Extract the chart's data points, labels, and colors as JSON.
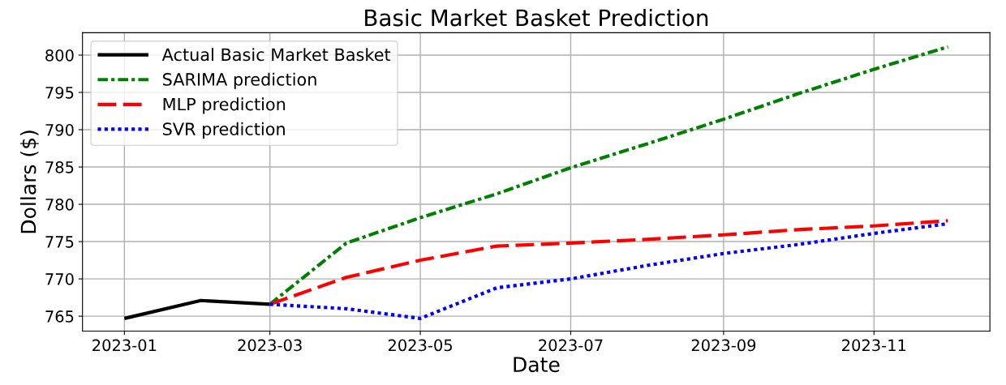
{
  "chart_data": {
    "type": "line",
    "title": "Basic Market Basket Prediction",
    "xlabel": "Date",
    "ylabel": "Dollars ($)",
    "xlim": [
      "2022-12-15",
      "2023-12-18"
    ],
    "xticks": [
      {
        "value": "2023-01-01",
        "label": "2023-01"
      },
      {
        "value": "2023-03-01",
        "label": "2023-03"
      },
      {
        "value": "2023-05-01",
        "label": "2023-05"
      },
      {
        "value": "2023-07-01",
        "label": "2023-07"
      },
      {
        "value": "2023-09-01",
        "label": "2023-09"
      },
      {
        "value": "2023-11-01",
        "label": "2023-11"
      }
    ],
    "ylim": [
      763,
      803
    ],
    "yticks": [
      765,
      770,
      775,
      780,
      785,
      790,
      795,
      800
    ],
    "grid": true,
    "legend": "top left",
    "series": [
      {
        "name": "Actual Basic Market Basket",
        "color": "#000000",
        "line_style": "solid",
        "x": [
          "2023-01-01",
          "2023-02-01",
          "2023-03-01"
        ],
        "values": [
          764.7,
          767.1,
          766.6
        ]
      },
      {
        "name": "SARIMA prediction",
        "color": "#008000",
        "line_style": "dashdot",
        "x": [
          "2023-03-01",
          "2023-04-01",
          "2023-05-01",
          "2023-06-01",
          "2023-07-01",
          "2023-08-01",
          "2023-09-01",
          "2023-10-01",
          "2023-11-01",
          "2023-12-01"
        ],
        "values": [
          766.6,
          774.8,
          778.2,
          781.4,
          784.9,
          788.1,
          791.4,
          794.8,
          798.1,
          801.1
        ]
      },
      {
        "name": "MLP prediction",
        "color": "#ff0000",
        "line_style": "dashed",
        "x": [
          "2023-03-01",
          "2023-04-01",
          "2023-05-01",
          "2023-06-01",
          "2023-07-01",
          "2023-08-01",
          "2023-09-01",
          "2023-10-01",
          "2023-11-01",
          "2023-12-01"
        ],
        "values": [
          766.6,
          770.2,
          772.5,
          774.4,
          774.8,
          775.3,
          775.9,
          776.6,
          777.1,
          777.8
        ]
      },
      {
        "name": "SVR prediction",
        "color": "#0000ff",
        "line_style": "dotted",
        "x": [
          "2023-03-01",
          "2023-04-01",
          "2023-05-01",
          "2023-06-01",
          "2023-07-01",
          "2023-08-01",
          "2023-09-01",
          "2023-10-01",
          "2023-11-01",
          "2023-12-01"
        ],
        "values": [
          766.6,
          766.0,
          764.7,
          768.8,
          770.0,
          771.8,
          773.4,
          774.6,
          776.1,
          777.4
        ]
      }
    ]
  }
}
